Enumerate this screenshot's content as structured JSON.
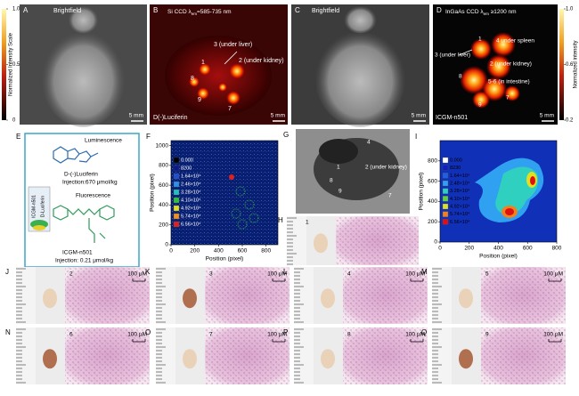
{
  "A": {
    "letter": "A",
    "label": "Brightfield",
    "scale_bar": "5 mm",
    "colorbar": {
      "title": "Normalized Intensity Scale",
      "lim": [
        0,
        1
      ],
      "ticks": [
        {
          "value": 1,
          "label": "1.0"
        },
        0.5,
        0
      ]
    }
  },
  "B": {
    "letter": "B",
    "label": [
      "Si CCD λ",
      "em",
      "=585-735 nm"
    ],
    "annotations": [
      "3 (under liver)",
      "1",
      "2 (under kidney)",
      "8",
      "9",
      "7"
    ],
    "probe": "D(-)Luciferin",
    "scale_bar": "5 mm"
  },
  "C": {
    "letter": "C",
    "label": "Brightfield",
    "scale_bar": "5 mm"
  },
  "D": {
    "letter": "D",
    "label": [
      "InGaAs CCD λ",
      "em",
      " ≥1200 nm"
    ],
    "annotations": [
      "1",
      "4 under spleen",
      "3 (under liver)",
      "2 (under kidney)",
      "8",
      "5-6 (in intestine)",
      "9",
      "7"
    ],
    "probe": "ICGM-n501",
    "scale_bar": "5 mm",
    "colorbar": {
      "title": "Normalized intensity",
      "lim": [
        0.2,
        1
      ],
      "ticks": [
        {
          "value": 1,
          "label": "1.0"
        },
        0.6,
        0.2
      ]
    }
  },
  "E": {
    "letter": "E",
    "luminescence": "Luminescence",
    "luciferin": "D-(-)Luciferin",
    "luciferin_dose": "Injection:670 μmol/kg",
    "fluorescence": "Fluorescence",
    "probe": "ICGM-n501",
    "probe_dose": "Injection: 0.21 μmol/kg",
    "inset_labels": [
      "ICGM-n501",
      "D-Luciferin"
    ]
  },
  "F": {
    "letter": "F",
    "xlabel": "Position (pixel)",
    "ylabel": "Position (pixel)",
    "xlim": [
      0,
      900
    ],
    "ylim": [
      0,
      1050
    ],
    "xticks": [
      0,
      200,
      400,
      600,
      800
    ],
    "yticks": [
      0,
      200,
      400,
      600,
      800,
      1000
    ],
    "legend": [
      "0.000",
      "8200",
      "1.64×10⁴",
      "2.46×10⁴",
      "3.28×10⁴",
      "4.10×10⁴",
      "4.92×10⁴",
      "5.74×10⁴",
      "6.56×10⁴"
    ],
    "legend_colors": [
      "#000000",
      "#0a1a8a",
      "#1f4fd0",
      "#2f8fe8",
      "#20c0c0",
      "#30c040",
      "#e0e020",
      "#f09020",
      "#e02020"
    ]
  },
  "G": {
    "letter": "G",
    "annotations": [
      "4",
      "2 (under kidney)",
      "1",
      "8",
      "9",
      "7"
    ]
  },
  "H": {
    "letter": "H",
    "number": "1"
  },
  "I": {
    "letter": "I",
    "xlabel": "Position (pixel)",
    "ylabel": "Position (pixel)",
    "xlim": [
      0,
      800
    ],
    "ylim": [
      0,
      1000
    ],
    "xticks": [
      0,
      200,
      400,
      600,
      800
    ],
    "yticks": [
      0,
      200,
      400,
      600,
      800
    ],
    "legend": [
      "0.000",
      "8230",
      "1.64×10⁴",
      "2.48×10⁴",
      "3.28×10⁴",
      "4.10×10⁴",
      "4.92×10⁴",
      "5.74×10⁴",
      "6.56×10⁴"
    ],
    "legend_colors": [
      "#ffffff",
      "#1020c0",
      "#2060e0",
      "#30a0f0",
      "#30d0c0",
      "#60d040",
      "#e0e020",
      "#f08020",
      "#e01010"
    ]
  },
  "histology": [
    {
      "letter": "J",
      "number": "2",
      "scale": "100 μM"
    },
    {
      "letter": "K",
      "number": "3",
      "scale": "100 μM"
    },
    {
      "letter": "L",
      "number": "4",
      "scale": "100 μM"
    },
    {
      "letter": "M",
      "number": "5",
      "scale": "100 μM"
    },
    {
      "letter": "N",
      "number": "6",
      "scale": "100 μM"
    },
    {
      "letter": "O",
      "number": "7",
      "scale": "100 μM"
    },
    {
      "letter": "P",
      "number": "8",
      "scale": "100 μM"
    },
    {
      "letter": "Q",
      "number": "9",
      "scale": "100 μM"
    }
  ]
}
